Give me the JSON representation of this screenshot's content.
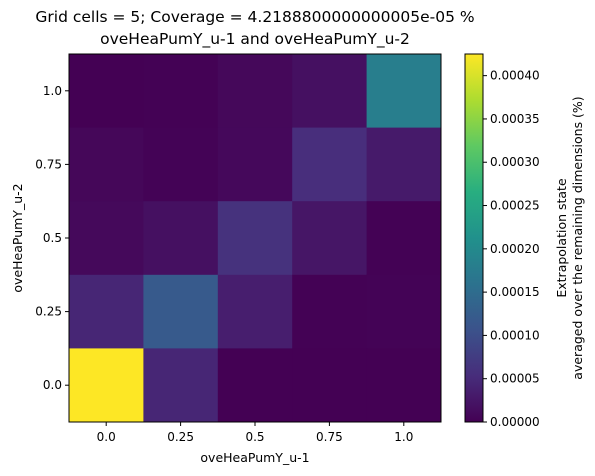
{
  "chart_data": {
    "type": "heatmap",
    "title_line1": "Grid cells = 5; Coverage = 4.2188800000000005e-05 %",
    "title_line2": "oveHeaPumY_u-1 and oveHeaPumY_u-2",
    "xlabel": "oveHeaPumY_u-1",
    "ylabel": "oveHeaPumY_u-2",
    "x_ticks": [
      "0.0",
      "0.25",
      "0.5",
      "0.75",
      "1.0"
    ],
    "y_ticks": [
      "0.0",
      "0.25",
      "0.5",
      "0.75",
      "1.0"
    ],
    "colorbar": {
      "label_line1": "Extrapolation state",
      "label_line2": "averaged over the remaining dimensions (%)",
      "colormap": "viridis",
      "vmin": 0.0,
      "vmax": 0.000425,
      "ticks": [
        "0.00000",
        "0.00005",
        "0.00010",
        "0.00015",
        "0.00020",
        "0.00025",
        "0.00030",
        "0.00035",
        "0.00040"
      ],
      "tick_values": [
        0,
        5e-05,
        0.0001,
        0.00015,
        0.0002,
        0.00025,
        0.0003,
        0.00035,
        0.0004
      ]
    },
    "rows_top_to_bottom": [
      "1.0",
      "0.75",
      "0.5",
      "0.25",
      "0.0"
    ],
    "values": [
      [
        5e-07,
        1e-06,
        8e-06,
        1.8e-05,
        0.00018
      ],
      [
        7e-06,
        2.5e-06,
        9e-06,
        5.5e-05,
        3e-05
      ],
      [
        1e-05,
        1.8e-05,
        6e-05,
        2.5e-05,
        1e-06
      ],
      [
        4.5e-05,
        0.00012,
        3.5e-05,
        1.5e-06,
        2.5e-06
      ],
      [
        0.000425,
        4.5e-05,
        5e-07,
        5e-07,
        5e-07
      ]
    ]
  }
}
